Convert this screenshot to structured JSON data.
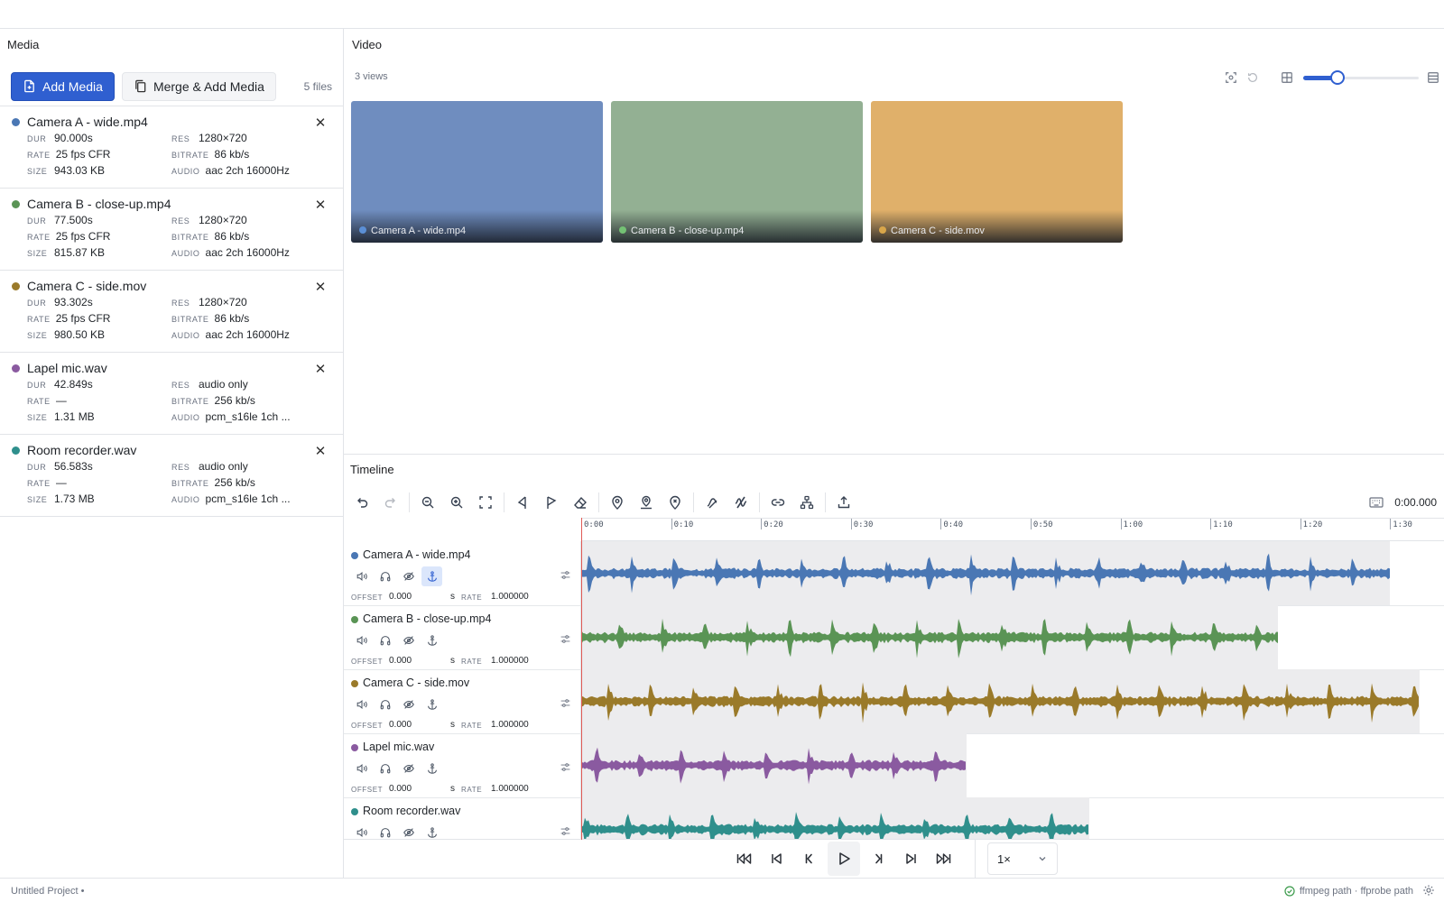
{
  "panels": {
    "media_title": "Media",
    "video_title": "Video",
    "timeline_title": "Timeline"
  },
  "media": {
    "add_label": "Add Media",
    "merge_label": "Merge & Add Media",
    "file_count": "5 files",
    "keys": {
      "dur": "DUR",
      "rate": "RATE",
      "size": "SIZE",
      "res": "RES",
      "bitrate": "BITRATE",
      "audio": "AUDIO"
    },
    "items": [
      {
        "name": "Camera A - wide.mp4",
        "color": "#4a77b4",
        "dur": "90.000s",
        "rate": "25 fps CFR",
        "size": "943.03 KB",
        "res": "1280×720",
        "bitrate": "86 kb/s",
        "audio": "aac 2ch 16000Hz"
      },
      {
        "name": "Camera B - close-up.mp4",
        "color": "#5a9455",
        "dur": "77.500s",
        "rate": "25 fps CFR",
        "size": "815.87 KB",
        "res": "1280×720",
        "bitrate": "86 kb/s",
        "audio": "aac 2ch 16000Hz"
      },
      {
        "name": "Camera C - side.mov",
        "color": "#9a7a2a",
        "dur": "93.302s",
        "rate": "25 fps CFR",
        "size": "980.50 KB",
        "res": "1280×720",
        "bitrate": "86 kb/s",
        "audio": "aac 2ch 16000Hz"
      },
      {
        "name": "Lapel mic.wav",
        "color": "#8a5aa0",
        "dur": "42.849s",
        "rate": "—",
        "size": "1.31 MB",
        "res": "audio only",
        "bitrate": "256 kb/s",
        "audio": "pcm_s16le 1ch ..."
      },
      {
        "name": "Room recorder.wav",
        "color": "#2f8f8c",
        "dur": "56.583s",
        "rate": "—",
        "size": "1.73 MB",
        "res": "audio only",
        "bitrate": "256 kb/s",
        "audio": "pcm_s16le 1ch ..."
      }
    ]
  },
  "video": {
    "views_label": "3 views",
    "zoom_fraction": 0.3,
    "tiles": [
      {
        "label": "Camera A - wide.mp4",
        "bg": "#6f8dbf",
        "dot": "#5b8fd6"
      },
      {
        "label": "Camera B - close-up.mp4",
        "bg": "#93b093",
        "dot": "#74c274"
      },
      {
        "label": "Camera C - side.mov",
        "bg": "#e0b06a",
        "dot": "#d9a64a"
      }
    ]
  },
  "timeline": {
    "timecode": "0:00.000",
    "ticks": [
      "0:00",
      "0:10",
      "0:20",
      "0:30",
      "0:40",
      "0:50",
      "1:00",
      "1:10",
      "1:20",
      "1:30"
    ],
    "tick_seconds": [
      0,
      10,
      20,
      30,
      40,
      50,
      60,
      70,
      80,
      90
    ],
    "visible_seconds": 96,
    "param_keys": {
      "offset": "OFFSET",
      "s": "s",
      "rate": "RATE"
    },
    "tracks": [
      {
        "name": "Camera A - wide.mp4",
        "color": "#4a77b4",
        "duration": 90.0,
        "offset": "0.000",
        "rate": "1.000000",
        "anchored": true
      },
      {
        "name": "Camera B - close-up.mp4",
        "color": "#5a9455",
        "duration": 77.5,
        "offset": "0.000",
        "rate": "1.000000",
        "anchored": false
      },
      {
        "name": "Camera C - side.mov",
        "color": "#9a7a2a",
        "duration": 93.302,
        "offset": "0.000",
        "rate": "1.000000",
        "anchored": false
      },
      {
        "name": "Lapel mic.wav",
        "color": "#8a5aa0",
        "duration": 42.849,
        "offset": "0.000",
        "rate": "1.000000",
        "anchored": false
      },
      {
        "name": "Room recorder.wav",
        "color": "#2f8f8c",
        "duration": 56.583,
        "offset": "0.000",
        "rate": "1.000000",
        "anchored": false
      }
    ]
  },
  "transport": {
    "speed": "1×"
  },
  "status": {
    "project": "Untitled Project •",
    "paths": "ffmpeg path · ffprobe path"
  }
}
